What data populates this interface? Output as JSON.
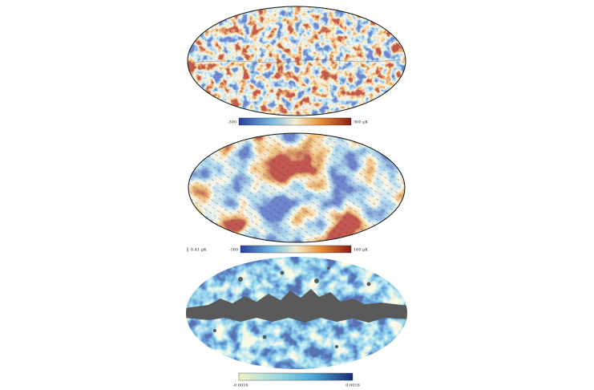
{
  "panels": [
    {
      "colorbar": {
        "min_label": "-300",
        "max_label": "300 µK"
      }
    },
    {
      "colorbar": {
        "min_label": "-160",
        "max_label": "160 µK"
      },
      "scale_label": "0.41 µK"
    },
    {
      "colorbar": {
        "min_label": "-0.0016",
        "max_label": "0.0016"
      }
    }
  ]
}
